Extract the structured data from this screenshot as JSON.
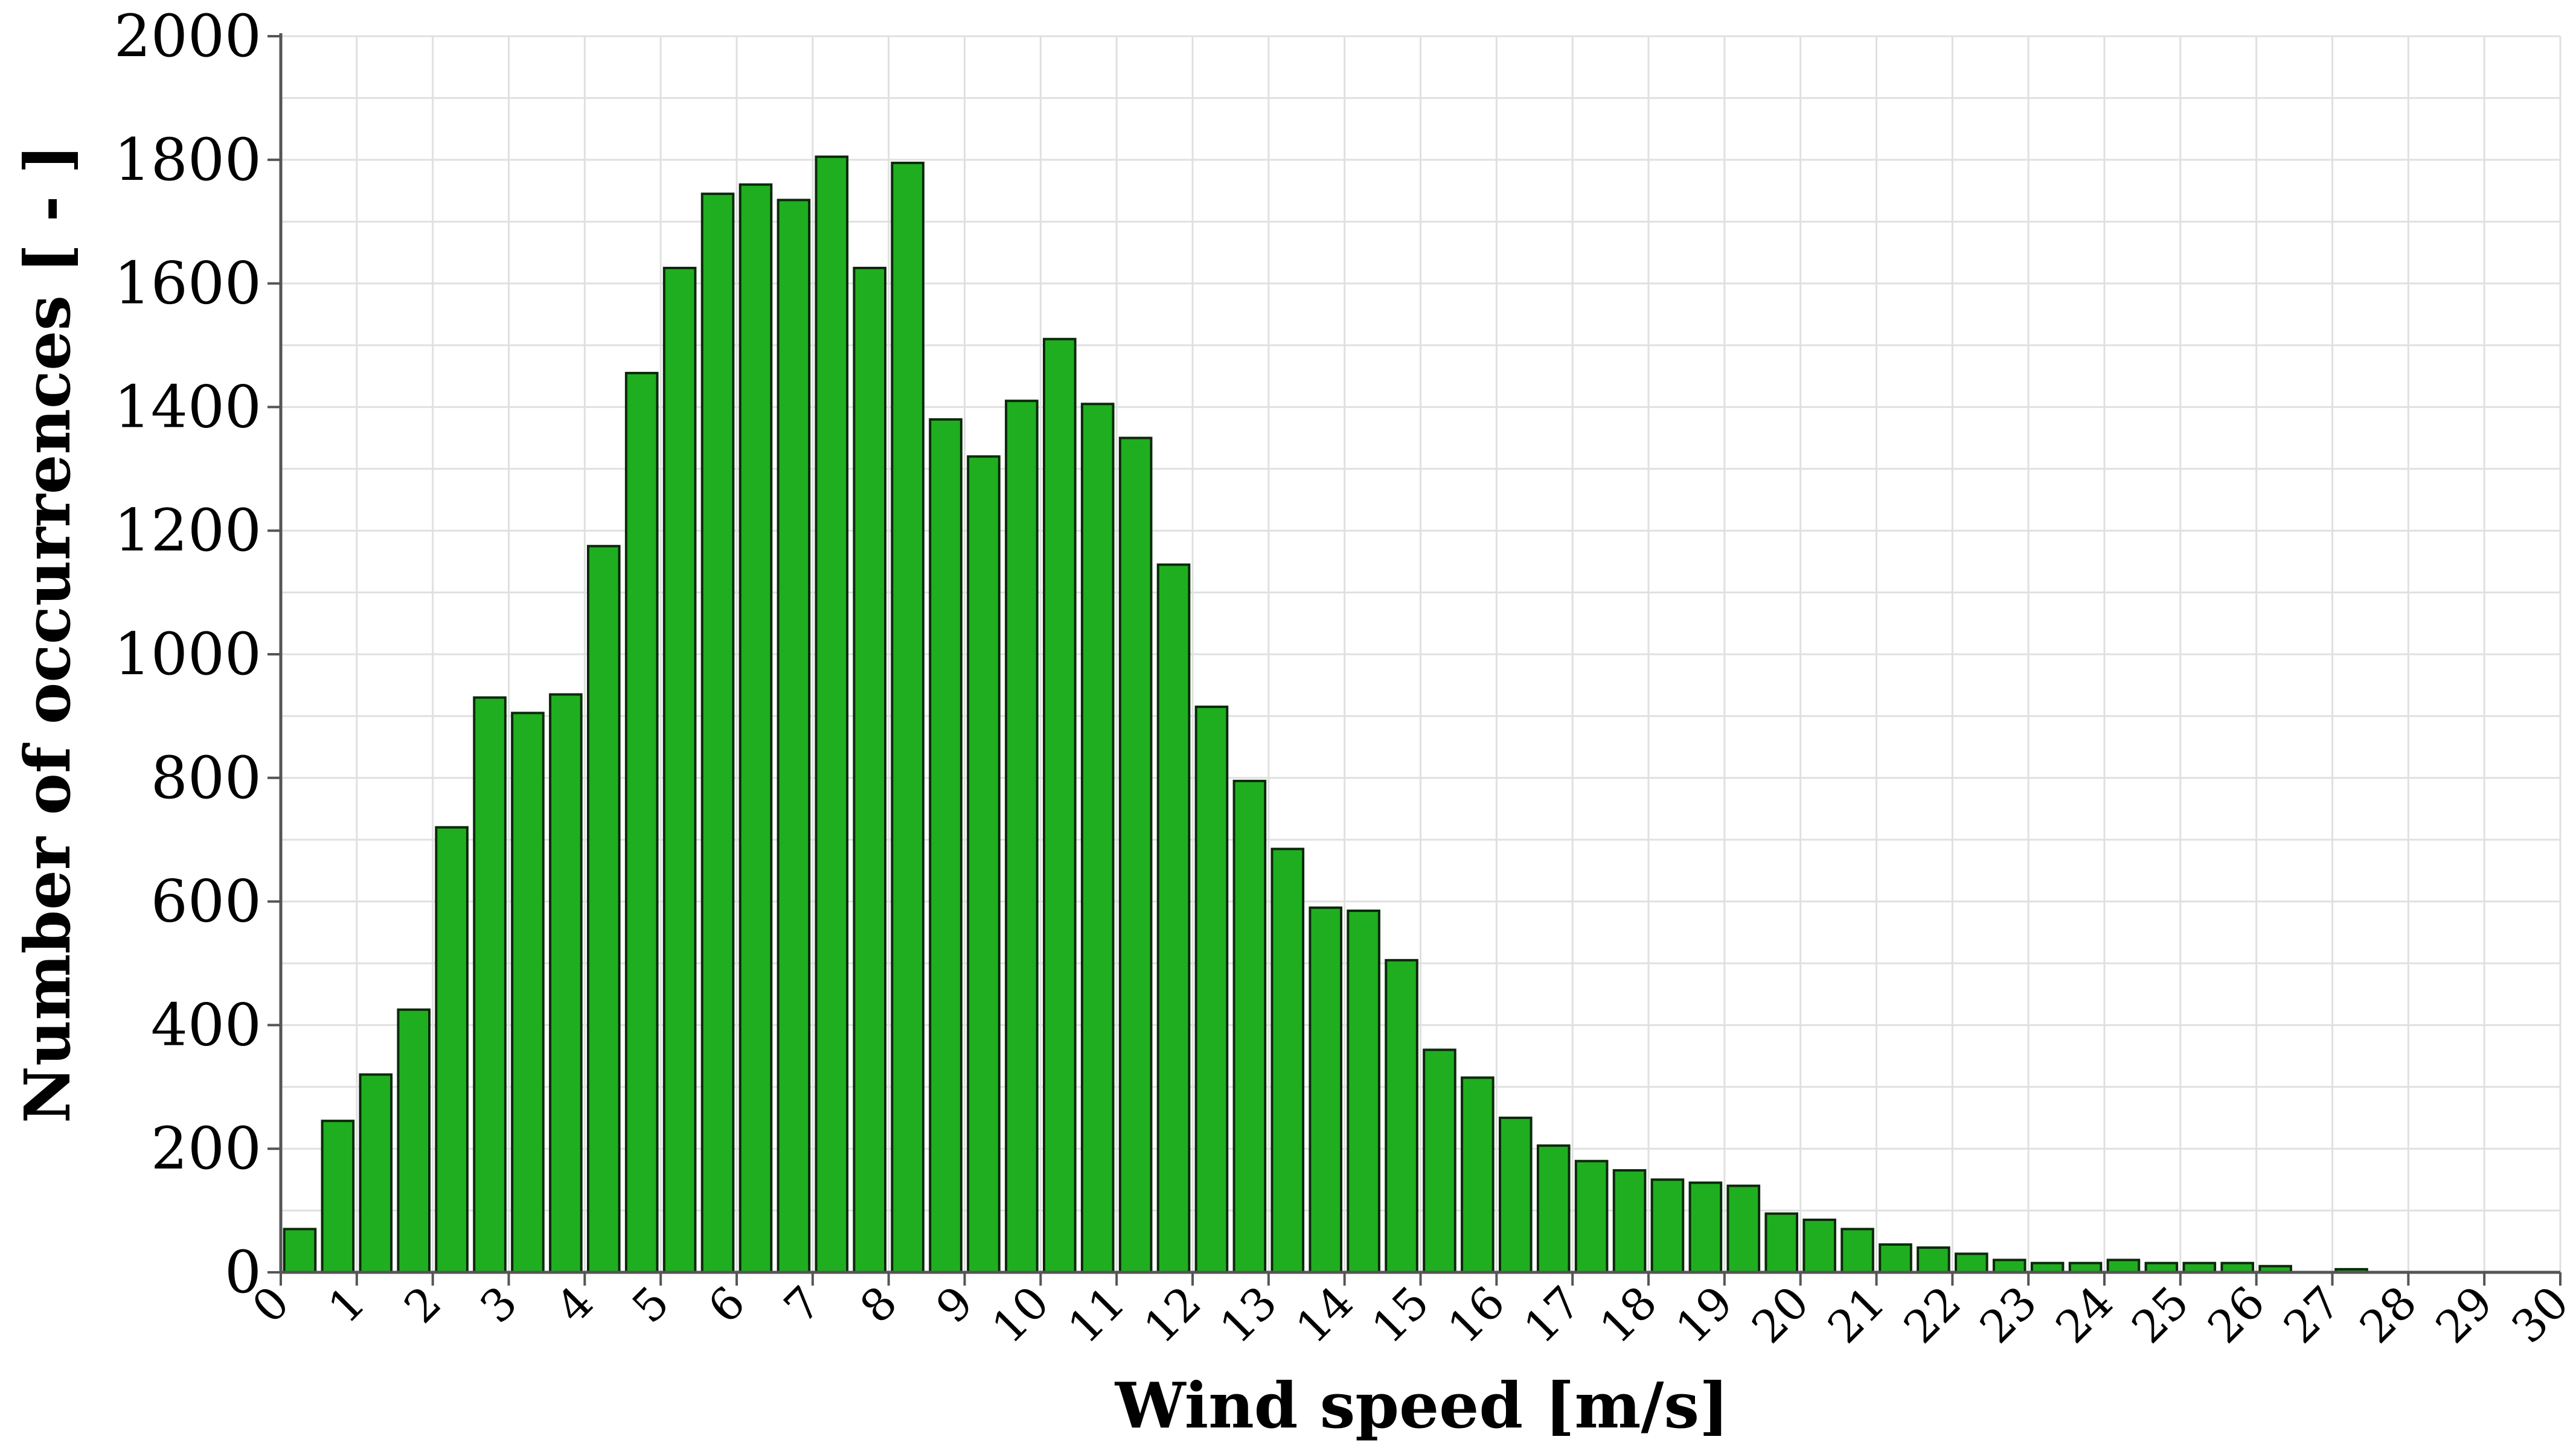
{
  "chart_data": {
    "type": "bar",
    "xlabel": "Wind speed [m/s]",
    "ylabel": "Number of occurrences [ - ]",
    "ylim": [
      0,
      2000
    ],
    "xlim": [
      0,
      30
    ],
    "yticks": [
      "0",
      "200",
      "400",
      "600",
      "800",
      "1000",
      "1200",
      "1400",
      "1600",
      "1800",
      "2000"
    ],
    "xticks": [
      "0",
      "1",
      "2",
      "3",
      "4",
      "5",
      "6",
      "7",
      "8",
      "9",
      "10",
      "11",
      "12",
      "13",
      "14",
      "15",
      "16",
      "17",
      "18",
      "19",
      "20",
      "21",
      "22",
      "23",
      "24",
      "25",
      "26",
      "27",
      "28",
      "29",
      "30"
    ],
    "grid": true,
    "bar_color": "#1fae1f",
    "bar_edge_color": "#0a2a0a",
    "grid_color": "#e0e0e0",
    "x": [
      0.25,
      0.75,
      1.25,
      1.75,
      2.25,
      2.75,
      3.25,
      3.75,
      4.25,
      4.75,
      5.25,
      5.75,
      6.25,
      6.75,
      7.25,
      7.75,
      8.25,
      8.75,
      9.25,
      9.75,
      10.25,
      10.75,
      11.25,
      11.75,
      12.25,
      12.75,
      13.25,
      13.75,
      14.25,
      14.75,
      15.25,
      15.75,
      16.25,
      16.75,
      17.25,
      17.75,
      18.25,
      18.75,
      19.25,
      19.75,
      20.25,
      20.75,
      21.25,
      21.75,
      22.25,
      22.75,
      23.25,
      23.75,
      24.25,
      24.75,
      25.25,
      25.75,
      26.25,
      26.75,
      27.25,
      27.75
    ],
    "values": [
      70,
      245,
      320,
      425,
      720,
      930,
      905,
      935,
      1175,
      1455,
      1625,
      1745,
      1760,
      1735,
      1805,
      1625,
      1795,
      1380,
      1320,
      1410,
      1510,
      1405,
      1350,
      1145,
      915,
      795,
      685,
      590,
      585,
      505,
      360,
      315,
      250,
      205,
      180,
      165,
      150,
      145,
      140,
      95,
      85,
      70,
      45,
      40,
      30,
      20,
      15,
      15,
      20,
      15,
      15,
      15,
      10,
      0,
      5,
      0
    ]
  }
}
